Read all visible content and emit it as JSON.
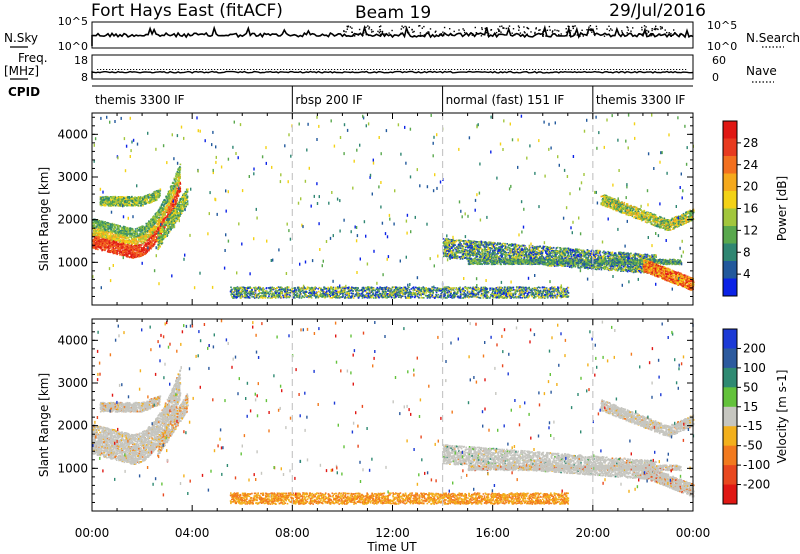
{
  "header": {
    "title": "Fort Hays East (fitACF)",
    "beam": "Beam 19",
    "date": "29/Jul/2016"
  },
  "strip1": {
    "left_label": "N.Sky",
    "right_label": "N.Search",
    "left_ticks": [
      "10^5",
      "10^0"
    ],
    "right_ticks": [
      "10^5",
      "10^0"
    ]
  },
  "strip2": {
    "left_label": "Freq.",
    "left_unit": "[MHz]",
    "right_label": "Nave",
    "left_ticks": [
      "18",
      "8"
    ],
    "right_ticks": [
      "60",
      "0"
    ]
  },
  "cpid": {
    "label": "CPID",
    "segments": [
      {
        "label": "themis 3300 IF",
        "start_h": 0,
        "end_h": 8
      },
      {
        "label": "rbsp 200 IF",
        "start_h": 8,
        "end_h": 14
      },
      {
        "label": "normal (fast) 151 IF",
        "start_h": 14,
        "end_h": 20
      },
      {
        "label": "themis 3300 IF",
        "start_h": 20,
        "end_h": 24
      }
    ]
  },
  "xaxis": {
    "label": "Time UT",
    "ticks": [
      "00:00",
      "04:00",
      "08:00",
      "12:00",
      "16:00",
      "20:00",
      "00:00"
    ]
  },
  "chart_data": [
    {
      "type": "heatmap",
      "panel": "power",
      "ylabel": "Slant Range [km]",
      "xlim_hours": [
        0,
        24
      ],
      "ylim_km": [
        0,
        4500
      ],
      "yticks": [
        "1000",
        "2000",
        "3000",
        "4000"
      ],
      "colorbar": {
        "label": "Power [dB]",
        "ticks": [
          "4",
          "8",
          "12",
          "16",
          "20",
          "24",
          "28"
        ],
        "colors": [
          "#0b22e6",
          "#22599c",
          "#2f8672",
          "#59a84d",
          "#a2c63c",
          "#f3d216",
          "#f5a91c",
          "#f3701f",
          "#e83a1f",
          "#e01814"
        ]
      },
      "regions": [
        {
          "t": [
            0.0,
            3.5
          ],
          "range_km": [
            1200,
            1900
          ],
          "level": "strong"
        },
        {
          "t": [
            0.3,
            2.7
          ],
          "range_km": [
            1800,
            2800
          ],
          "level": "medium"
        },
        {
          "t": [
            14.0,
            22.5
          ],
          "range_km": [
            700,
            1500
          ],
          "level": "medium"
        },
        {
          "t": [
            20.0,
            24.0
          ],
          "range_km": [
            1700,
            2400
          ],
          "level": "medium"
        },
        {
          "t": [
            22.5,
            24.0
          ],
          "range_km": [
            400,
            800
          ],
          "level": "strong"
        },
        {
          "t": [
            5.5,
            19.0
          ],
          "range_km": [
            200,
            400
          ],
          "level": "weak"
        }
      ]
    },
    {
      "type": "heatmap",
      "panel": "velocity",
      "ylabel": "Slant Range [km]",
      "xlim_hours": [
        0,
        24
      ],
      "ylim_km": [
        0,
        4500
      ],
      "yticks": [
        "1000",
        "2000",
        "3000",
        "4000"
      ],
      "colorbar": {
        "label": "Velocity [m s-1]",
        "ticks": [
          "200",
          "100",
          "50",
          "15",
          "-15",
          "-50",
          "-100",
          "-200"
        ],
        "colors": [
          "#1c3ad6",
          "#2c5a9e",
          "#2f8a72",
          "#63c23b",
          "#c6c6c0",
          "#f3b01c",
          "#f27a1e",
          "#e8481f",
          "#e01814"
        ]
      },
      "regions": [
        {
          "t": [
            0.0,
            3.5
          ],
          "range_km": [
            1200,
            2500
          ],
          "velocity": "near zero"
        },
        {
          "t": [
            14.0,
            22.5
          ],
          "range_km": [
            700,
            1500
          ],
          "velocity": "near zero"
        },
        {
          "t": [
            20.5,
            24.0
          ],
          "range_km": [
            1700,
            2500
          ],
          "velocity": "near zero"
        },
        {
          "t": [
            5.5,
            19.0
          ],
          "range_km": [
            200,
            500
          ],
          "velocity": "-15 to -50"
        }
      ]
    }
  ]
}
